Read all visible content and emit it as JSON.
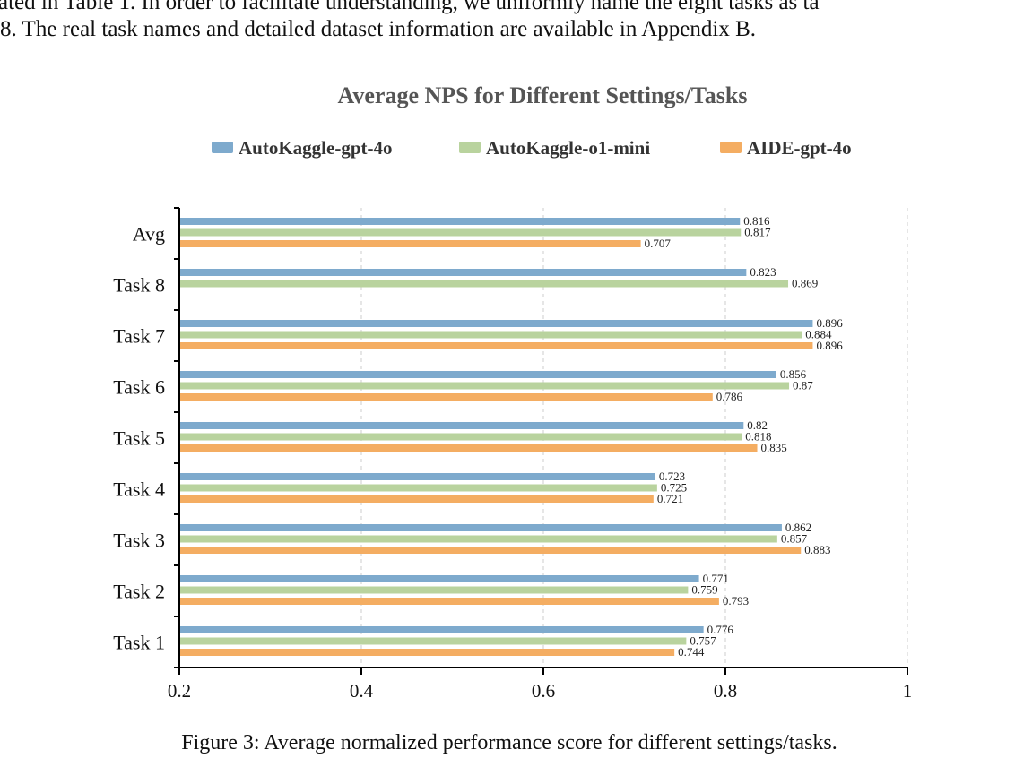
{
  "text": [
    "ated in Table 1. In order to facilitate understanding, we uniformly name the eight tasks as ta",
    "8. The real task names and detailed dataset information are available in Appendix B."
  ],
  "chart_data": {
    "type": "bar",
    "orientation": "horizontal",
    "title": "Average NPS for Different Settings/Tasks",
    "categories": [
      "Avg",
      "Task 8",
      "Task 7",
      "Task 6",
      "Task 5",
      "Task 4",
      "Task 3",
      "Task 2",
      "Task 1"
    ],
    "series": [
      {
        "name": "AutoKaggle-gpt-4o",
        "color": "#7eaacd",
        "values": [
          0.816,
          0.823,
          0.896,
          0.856,
          0.82,
          0.723,
          0.862,
          0.771,
          0.776
        ]
      },
      {
        "name": "AutoKaggle-o1-mini",
        "color": "#b9d39e",
        "values": [
          0.817,
          0.869,
          0.884,
          0.87,
          0.818,
          0.725,
          0.857,
          0.759,
          0.757
        ]
      },
      {
        "name": "AIDE-gpt-4o",
        "color": "#f4ad62",
        "values": [
          0.707,
          null,
          0.896,
          0.786,
          0.835,
          0.721,
          0.883,
          0.793,
          0.744
        ]
      }
    ],
    "xlim": [
      0.2,
      1
    ],
    "xticks": [
      0.2,
      0.4,
      0.6,
      0.8,
      1
    ],
    "grid": true,
    "legend": "top"
  },
  "caption": "Figure 3: Average normalized performance score for different settings/tasks."
}
